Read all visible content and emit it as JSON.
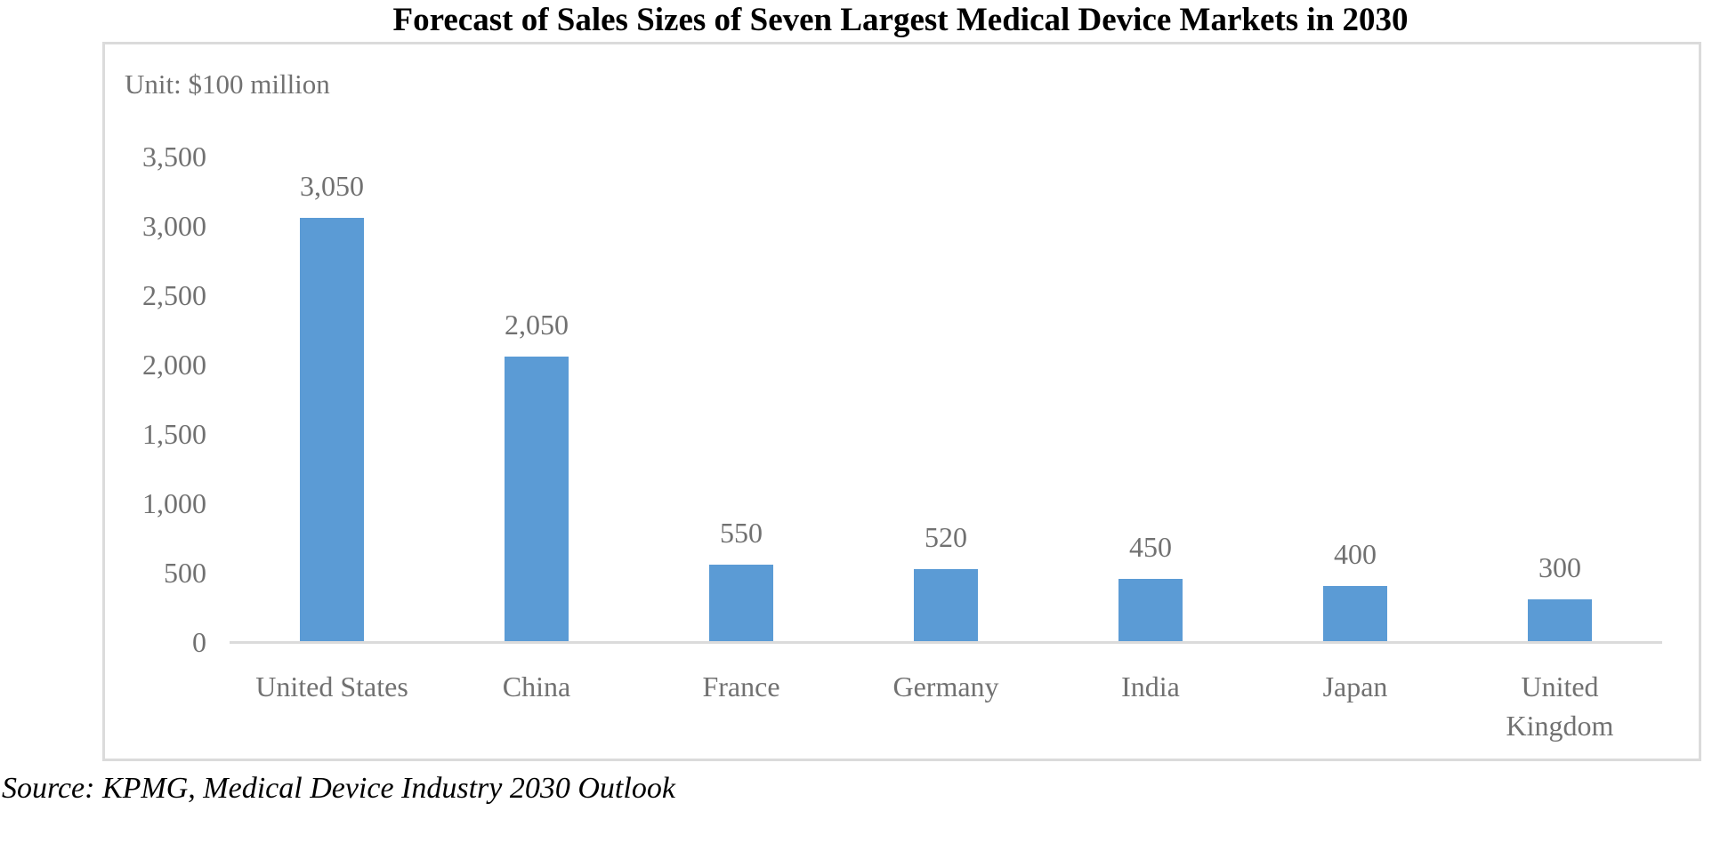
{
  "chart": {
    "unit_label": "Unit: $100 million",
    "source": "Source: KPMG, Medical Device Industry 2030 Outlook"
  },
  "chart_data": {
    "type": "bar",
    "title": "Forecast of Sales Sizes of Seven Largest Medical Device Markets in 2030",
    "unit": "$100 million",
    "categories": [
      "United States",
      "China",
      "France",
      "Germany",
      "India",
      "Japan",
      "United Kingdom"
    ],
    "category_display_labels": [
      "United States",
      "China",
      "France",
      "Germany",
      "India",
      "Japan",
      "United\nKingdom"
    ],
    "values": [
      3050,
      2050,
      550,
      520,
      450,
      400,
      300
    ],
    "data_labels": [
      "3,050",
      "2,050",
      "550",
      "520",
      "450",
      "400",
      "300"
    ],
    "yticks": [
      0,
      500,
      1000,
      1500,
      2000,
      2500,
      3000,
      3500
    ],
    "ytick_labels": [
      "0",
      "500",
      "1,000",
      "1,500",
      "2,000",
      "2,500",
      "3,000",
      "3,500"
    ],
    "ylim": [
      0,
      3500
    ],
    "xlabel": "",
    "ylabel": "",
    "grid": false,
    "legend": false,
    "bar_color": "#5B9BD5",
    "axis_color": "#DBDBDB",
    "label_color": "#717171",
    "title_color": "#000000"
  }
}
